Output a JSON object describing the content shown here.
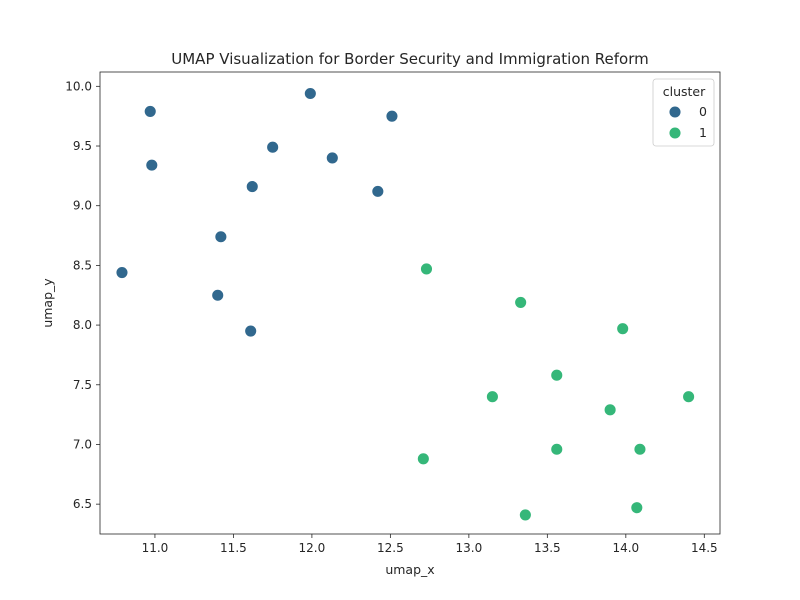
{
  "chart_data": {
    "type": "scatter",
    "title": "UMAP Visualization for Border Security and Immigration Reform",
    "xlabel": "umap_x",
    "ylabel": "umap_y",
    "xlim": [
      10.65,
      14.6
    ],
    "ylim": [
      6.25,
      10.12
    ],
    "xticks": [
      11.0,
      11.5,
      12.0,
      12.5,
      13.0,
      13.5,
      14.0,
      14.5
    ],
    "yticks": [
      6.5,
      7.0,
      7.5,
      8.0,
      8.5,
      9.0,
      9.5,
      10.0
    ],
    "grid": false,
    "legend": {
      "title": "cluster",
      "placement": "top-right",
      "entries": [
        {
          "label": "0",
          "color": "#31688e"
        },
        {
          "label": "1",
          "color": "#35b779"
        }
      ]
    },
    "series": [
      {
        "name": "0",
        "color": "#31688e",
        "points": [
          [
            10.97,
            9.79
          ],
          [
            10.98,
            9.34
          ],
          [
            11.99,
            9.94
          ],
          [
            12.51,
            9.75
          ],
          [
            11.75,
            9.49
          ],
          [
            12.13,
            9.4
          ],
          [
            11.62,
            9.16
          ],
          [
            12.42,
            9.12
          ],
          [
            11.42,
            8.74
          ],
          [
            10.79,
            8.44
          ],
          [
            11.4,
            8.25
          ],
          [
            11.61,
            7.95
          ]
        ]
      },
      {
        "name": "1",
        "color": "#35b779",
        "points": [
          [
            12.73,
            8.47
          ],
          [
            13.33,
            8.19
          ],
          [
            13.98,
            7.97
          ],
          [
            13.56,
            7.58
          ],
          [
            13.15,
            7.4
          ],
          [
            14.4,
            7.4
          ],
          [
            13.9,
            7.29
          ],
          [
            13.56,
            6.96
          ],
          [
            14.09,
            6.96
          ],
          [
            12.71,
            6.88
          ],
          [
            14.07,
            6.47
          ],
          [
            13.36,
            6.41
          ]
        ]
      }
    ]
  }
}
